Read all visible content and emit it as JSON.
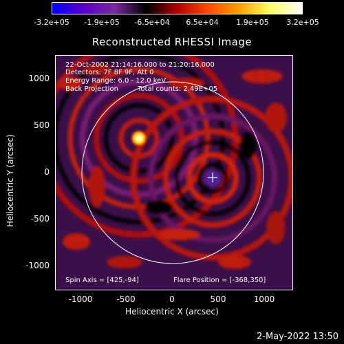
{
  "colorbar": {
    "ticks": [
      "-3.2e+05",
      "-1.9e+05",
      "-6.5e+04",
      "6.5e+04",
      "1.9e+05",
      "3.2e+05"
    ],
    "stops": [
      "#0000ff",
      "#5a00c8",
      "#7a2aa0",
      "#000000",
      "#b00000",
      "#ff4a00",
      "#ffa000",
      "#ffff66",
      "#ffffff"
    ]
  },
  "title": "Reconstructed RHESSI Image",
  "annotations": {
    "line1": "22-Oct-2002 21:14:16.000 to 21:20:16.000",
    "line2": "Detectors: 7F 8F 9F, Att 0",
    "line3": "Energy Range: 6.0 - 12.0 keV",
    "line4a": "Back Projection",
    "line4b": "Total counts: 2.49E+05",
    "spin_axis": "Spin Axis = [425,-94]",
    "flare_position": "Flare Position = [-368,350]"
  },
  "axes": {
    "x_title": "Heliocentric X (arcsec)",
    "y_title": "Heliocentric Y (arcsec)",
    "x_ticks": [
      "-1000",
      "-500",
      "0",
      "500",
      "1000"
    ],
    "y_ticks": [
      "1000",
      "500",
      "0",
      "-500",
      "-1000"
    ],
    "x_range": [
      -1300,
      1300
    ],
    "y_range": [
      -1300,
      1250
    ]
  },
  "sources": [
    {
      "name": "flare",
      "x": -368,
      "y": 350
    },
    {
      "name": "spin-axis",
      "x": 425,
      "y": -94
    }
  ],
  "footer": "2-May-2022 13:50"
}
